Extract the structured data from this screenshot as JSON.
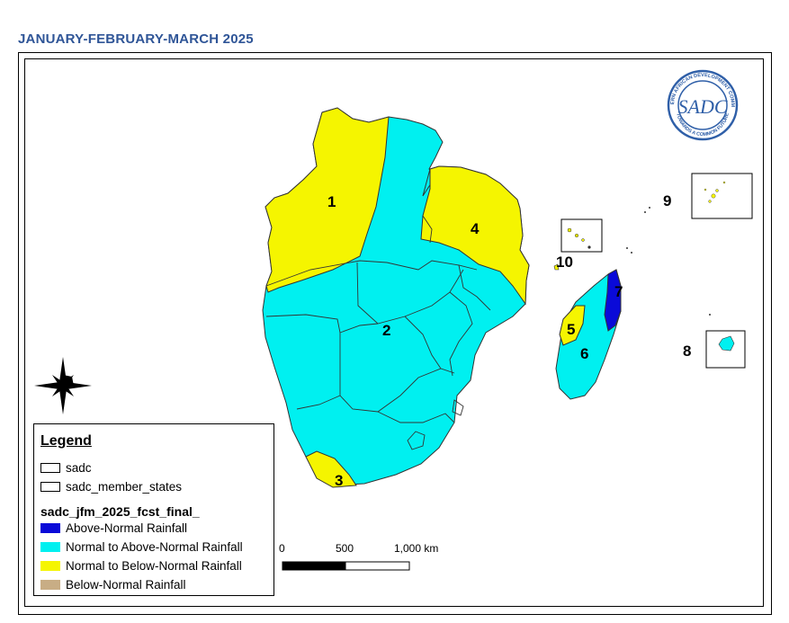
{
  "title": "JANUARY-FEBRUARY-MARCH 2025",
  "logo": {
    "text_ring_top": "SOUTHERN AFRICAN DEVELOPMENT COMMUNITY",
    "text_ring_bottom": "TOWARDS A COMMON FUTURE",
    "monogram": "SADC"
  },
  "compass": {
    "icon": "north-arrow-compass-star"
  },
  "zones": [
    "1",
    "2",
    "3",
    "4",
    "5",
    "6",
    "7",
    "8",
    "9",
    "10"
  ],
  "legend": {
    "title": "Legend",
    "items": [
      {
        "label": "sadc",
        "style": "outline"
      },
      {
        "label": "sadc_member_states",
        "style": "outline"
      }
    ],
    "layer_name": "sadc_jfm_2025_fcst_final_",
    "classes": [
      {
        "label": "Above-Normal Rainfall",
        "color": "#0a0ad8"
      },
      {
        "label": "Normal to Above-Normal Rainfall",
        "color": "#00f0f0"
      },
      {
        "label": "Normal to Below-Normal Rainfall",
        "color": "#f5f500"
      },
      {
        "label": "Below-Normal Rainfall",
        "color": "#c8ad85"
      }
    ]
  },
  "scale_bar": {
    "labels": [
      "0",
      "500",
      "1,000 km"
    ]
  }
}
